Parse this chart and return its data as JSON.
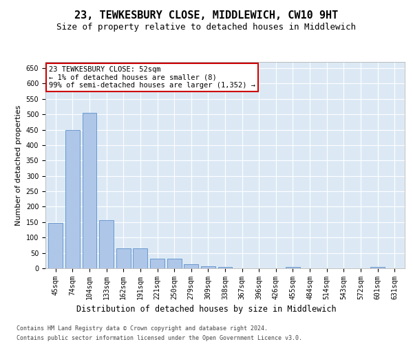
{
  "title": "23, TEWKESBURY CLOSE, MIDDLEWICH, CW10 9HT",
  "subtitle": "Size of property relative to detached houses in Middlewich",
  "xlabel": "Distribution of detached houses by size in Middlewich",
  "ylabel": "Number of detached properties",
  "categories": [
    "45sqm",
    "74sqm",
    "104sqm",
    "133sqm",
    "162sqm",
    "191sqm",
    "221sqm",
    "250sqm",
    "279sqm",
    "309sqm",
    "338sqm",
    "367sqm",
    "396sqm",
    "426sqm",
    "455sqm",
    "484sqm",
    "514sqm",
    "543sqm",
    "572sqm",
    "601sqm",
    "631sqm"
  ],
  "values": [
    147,
    448,
    505,
    157,
    65,
    65,
    32,
    32,
    13,
    6,
    5,
    0,
    0,
    0,
    5,
    0,
    0,
    0,
    0,
    5,
    0
  ],
  "bar_color": "#aec6e8",
  "bar_edge_color": "#5b8fc9",
  "annotation_line1": "23 TEWKESBURY CLOSE: 52sqm",
  "annotation_line2": "← 1% of detached houses are smaller (8)",
  "annotation_line3": "99% of semi-detached houses are larger (1,352) →",
  "annotation_box_facecolor": "#ffffff",
  "annotation_box_edgecolor": "#cc0000",
  "ylim": [
    0,
    670
  ],
  "yticks": [
    0,
    50,
    100,
    150,
    200,
    250,
    300,
    350,
    400,
    450,
    500,
    550,
    600,
    650
  ],
  "plot_bg_color": "#dce9f5",
  "grid_color": "#ffffff",
  "footer_line1": "Contains HM Land Registry data © Crown copyright and database right 2024.",
  "footer_line2": "Contains public sector information licensed under the Open Government Licence v3.0.",
  "title_fontsize": 11,
  "subtitle_fontsize": 9,
  "xlabel_fontsize": 8.5,
  "ylabel_fontsize": 8,
  "tick_fontsize": 7,
  "annotation_fontsize": 7.5,
  "footer_fontsize": 6
}
